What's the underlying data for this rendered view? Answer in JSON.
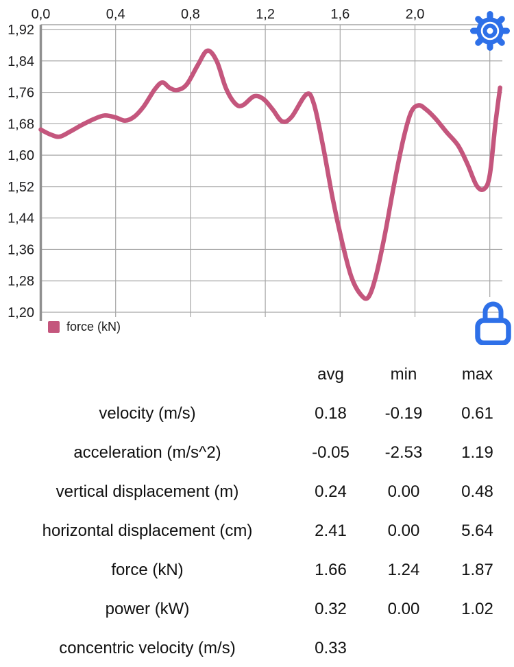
{
  "colors": {
    "accent_blue": "#2e70e8",
    "series_pink": "#c4567d",
    "gridline": "#a6a6a6",
    "axis": "#8f8f8f",
    "text": "#111111"
  },
  "chart": {
    "legend_label": "force (kN)",
    "x_ticks": [
      {
        "label": "0,0",
        "value": 0.0
      },
      {
        "label": "0,4",
        "value": 0.4
      },
      {
        "label": "0,8",
        "value": 0.8
      },
      {
        "label": "1,2",
        "value": 1.2
      },
      {
        "label": "1,6",
        "value": 1.6
      },
      {
        "label": "2,0",
        "value": 2.0
      },
      {
        "label": "",
        "value": 2.4
      }
    ],
    "y_ticks": [
      {
        "label": "1,92",
        "value": 1.92
      },
      {
        "label": "1,84",
        "value": 1.84
      },
      {
        "label": "1,76",
        "value": 1.76
      },
      {
        "label": "1,68",
        "value": 1.68
      },
      {
        "label": "1,60",
        "value": 1.6
      },
      {
        "label": "1,52",
        "value": 1.52
      },
      {
        "label": "1,44",
        "value": 1.44
      },
      {
        "label": "1,36",
        "value": 1.36
      },
      {
        "label": "1,28",
        "value": 1.28
      },
      {
        "label": "1,20",
        "value": 1.2
      }
    ]
  },
  "chart_data": {
    "type": "line",
    "title": "",
    "xlabel": "",
    "ylabel": "",
    "xlim": [
      0.0,
      2.47
    ],
    "ylim": [
      1.2,
      1.92
    ],
    "grid": true,
    "legend_position": "bottom-left",
    "series": [
      {
        "name": "force (kN)",
        "color": "#c4567d",
        "points": [
          [
            0.0,
            1.665
          ],
          [
            0.05,
            1.653
          ],
          [
            0.1,
            1.647
          ],
          [
            0.16,
            1.661
          ],
          [
            0.22,
            1.677
          ],
          [
            0.28,
            1.691
          ],
          [
            0.34,
            1.701
          ],
          [
            0.4,
            1.696
          ],
          [
            0.45,
            1.688
          ],
          [
            0.5,
            1.698
          ],
          [
            0.55,
            1.724
          ],
          [
            0.61,
            1.768
          ],
          [
            0.65,
            1.785
          ],
          [
            0.69,
            1.771
          ],
          [
            0.73,
            1.766
          ],
          [
            0.78,
            1.78
          ],
          [
            0.84,
            1.83
          ],
          [
            0.89,
            1.866
          ],
          [
            0.94,
            1.84
          ],
          [
            0.99,
            1.77
          ],
          [
            1.04,
            1.731
          ],
          [
            1.08,
            1.727
          ],
          [
            1.14,
            1.75
          ],
          [
            1.19,
            1.743
          ],
          [
            1.24,
            1.716
          ],
          [
            1.29,
            1.686
          ],
          [
            1.34,
            1.697
          ],
          [
            1.42,
            1.755
          ],
          [
            1.46,
            1.73
          ],
          [
            1.51,
            1.62
          ],
          [
            1.56,
            1.49
          ],
          [
            1.61,
            1.38
          ],
          [
            1.66,
            1.29
          ],
          [
            1.71,
            1.245
          ],
          [
            1.75,
            1.238
          ],
          [
            1.79,
            1.29
          ],
          [
            1.84,
            1.4
          ],
          [
            1.89,
            1.53
          ],
          [
            1.94,
            1.645
          ],
          [
            1.98,
            1.71
          ],
          [
            2.02,
            1.727
          ],
          [
            2.06,
            1.716
          ],
          [
            2.11,
            1.693
          ],
          [
            2.17,
            1.658
          ],
          [
            2.23,
            1.625
          ],
          [
            2.28,
            1.578
          ],
          [
            2.33,
            1.522
          ],
          [
            2.37,
            1.514
          ],
          [
            2.4,
            1.55
          ],
          [
            2.43,
            1.68
          ],
          [
            2.455,
            1.772
          ]
        ]
      }
    ]
  },
  "icons": {
    "settings": "gear-icon",
    "lock": "lock-icon"
  },
  "table": {
    "headers": [
      "avg",
      "min",
      "max"
    ],
    "rows": [
      {
        "label": "velocity (m/s)",
        "avg": "0.18",
        "min": "-0.19",
        "max": "0.61"
      },
      {
        "label": "acceleration (m/s^2)",
        "avg": "-0.05",
        "min": "-2.53",
        "max": "1.19"
      },
      {
        "label": "vertical displacement (m)",
        "avg": "0.24",
        "min": "0.00",
        "max": "0.48"
      },
      {
        "label": "horizontal displacement (cm)",
        "avg": "2.41",
        "min": "0.00",
        "max": "5.64"
      },
      {
        "label": "force (kN)",
        "avg": "1.66",
        "min": "1.24",
        "max": "1.87"
      },
      {
        "label": "power (kW)",
        "avg": "0.32",
        "min": "0.00",
        "max": "1.02"
      },
      {
        "label": "concentric velocity (m/s)",
        "avg": "0.33",
        "min": "",
        "max": ""
      }
    ]
  }
}
